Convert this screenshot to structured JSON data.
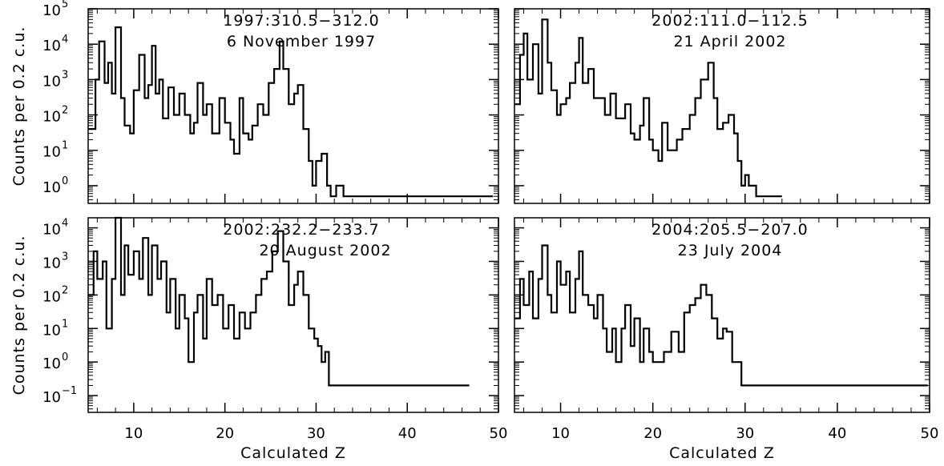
{
  "chart_data": [
    {
      "type": "histogram",
      "title_line1": "1997:310.5−312.0",
      "title_line2": "6 November 1997",
      "xlabel": "",
      "ylabel": "Counts per 0.2 c.u.",
      "xlim": [
        5,
        50
      ],
      "ylim_log10": [
        -0.5,
        5
      ],
      "yticks": [
        "10^0",
        "10^1",
        "10^2",
        "10^3",
        "10^4",
        "10^5"
      ],
      "xticks": [],
      "points": [
        [
          5,
          40
        ],
        [
          5.8,
          1000
        ],
        [
          6.2,
          12000
        ],
        [
          6.8,
          800
        ],
        [
          7.2,
          3000
        ],
        [
          7.6,
          400
        ],
        [
          8,
          30000
        ],
        [
          8.6,
          300
        ],
        [
          9,
          50
        ],
        [
          9.6,
          30
        ],
        [
          10,
          500
        ],
        [
          10.6,
          5000
        ],
        [
          11.2,
          300
        ],
        [
          11.6,
          700
        ],
        [
          12,
          9000
        ],
        [
          12.4,
          400
        ],
        [
          12.8,
          1000
        ],
        [
          13.2,
          80
        ],
        [
          13.8,
          600
        ],
        [
          14.4,
          100
        ],
        [
          15,
          400
        ],
        [
          15.6,
          100
        ],
        [
          16.2,
          30
        ],
        [
          16.6,
          60
        ],
        [
          17,
          800
        ],
        [
          17.6,
          100
        ],
        [
          18,
          200
        ],
        [
          18.6,
          30
        ],
        [
          19,
          30
        ],
        [
          19.4,
          300
        ],
        [
          20,
          60
        ],
        [
          20.6,
          20
        ],
        [
          21,
          8
        ],
        [
          21.6,
          300
        ],
        [
          22,
          30
        ],
        [
          22.6,
          20
        ],
        [
          23,
          50
        ],
        [
          23.6,
          200
        ],
        [
          24.2,
          100
        ],
        [
          24.8,
          800
        ],
        [
          25.4,
          2000
        ],
        [
          26,
          12000
        ],
        [
          26.4,
          2000
        ],
        [
          27,
          200
        ],
        [
          27.6,
          400
        ],
        [
          28,
          700
        ],
        [
          28.6,
          40
        ],
        [
          29.2,
          5
        ],
        [
          29.6,
          1
        ],
        [
          30,
          5
        ],
        [
          30.6,
          8
        ],
        [
          31.2,
          1
        ],
        [
          31.6,
          0.5
        ],
        [
          32.2,
          1
        ],
        [
          33,
          0.5
        ],
        [
          34,
          0.5
        ],
        [
          35.4,
          0.5
        ],
        [
          36,
          0.5
        ],
        [
          36.8,
          0.5
        ],
        [
          40.6,
          0.5
        ],
        [
          41.4,
          0.5
        ],
        [
          48.4,
          0.5
        ],
        [
          49.2,
          0.5
        ]
      ]
    },
    {
      "type": "histogram",
      "title_line1": "2002:111.0−112.5",
      "title_line2": "21 April 2002",
      "xlabel": "",
      "ylabel": "",
      "xlim": [
        5,
        50
      ],
      "ylim_log10": [
        -0.5,
        5
      ],
      "yticks": [],
      "xticks": [],
      "points": [
        [
          5,
          200
        ],
        [
          5.6,
          5000
        ],
        [
          6,
          20000
        ],
        [
          6.4,
          1000
        ],
        [
          7,
          10000
        ],
        [
          7.6,
          400
        ],
        [
          8,
          50000
        ],
        [
          8.6,
          3000
        ],
        [
          9,
          500
        ],
        [
          9.6,
          100
        ],
        [
          10,
          200
        ],
        [
          10.6,
          300
        ],
        [
          11,
          800
        ],
        [
          11.6,
          3000
        ],
        [
          12,
          15000
        ],
        [
          12.4,
          800
        ],
        [
          13,
          2000
        ],
        [
          13.6,
          300
        ],
        [
          14.2,
          300
        ],
        [
          14.8,
          100
        ],
        [
          15.4,
          400
        ],
        [
          16,
          80
        ],
        [
          16.6,
          80
        ],
        [
          17,
          200
        ],
        [
          17.6,
          30
        ],
        [
          18,
          20
        ],
        [
          18.6,
          50
        ],
        [
          19,
          300
        ],
        [
          19.6,
          20
        ],
        [
          20,
          10
        ],
        [
          20.6,
          5
        ],
        [
          21,
          60
        ],
        [
          21.6,
          10
        ],
        [
          22,
          10
        ],
        [
          22.6,
          20
        ],
        [
          23.2,
          40
        ],
        [
          24,
          100
        ],
        [
          24.6,
          300
        ],
        [
          25.2,
          1000
        ],
        [
          26,
          3000
        ],
        [
          26.6,
          300
        ],
        [
          27,
          40
        ],
        [
          27.6,
          60
        ],
        [
          28.2,
          100
        ],
        [
          28.8,
          30
        ],
        [
          29.2,
          5
        ],
        [
          29.6,
          1
        ],
        [
          30,
          2
        ],
        [
          30.4,
          1
        ],
        [
          31.2,
          0.5
        ],
        [
          32.6,
          0.5
        ],
        [
          33.8,
          0.5
        ]
      ]
    },
    {
      "type": "histogram",
      "title_line1": "2002:232.2−233.7",
      "title_line2": "20 August 2002",
      "xlabel": "Calculated Z",
      "ylabel": "Counts per 0.2 c.u.",
      "xlim": [
        5,
        50
      ],
      "ylim_log10": [
        -1.5,
        4.3
      ],
      "yticks": [
        "10^-1",
        "10^0",
        "10^1",
        "10^2",
        "10^3",
        "10^4"
      ],
      "xticks": [
        "10",
        "20",
        "30",
        "40",
        "50"
      ],
      "points": [
        [
          5,
          100
        ],
        [
          5.6,
          2000
        ],
        [
          6,
          300
        ],
        [
          6.6,
          1000
        ],
        [
          7,
          10
        ],
        [
          7.6,
          300
        ],
        [
          8,
          20000
        ],
        [
          8.6,
          100
        ],
        [
          9,
          3000
        ],
        [
          9.4,
          400
        ],
        [
          10,
          2000
        ],
        [
          10.6,
          300
        ],
        [
          11,
          5000
        ],
        [
          11.6,
          100
        ],
        [
          12,
          3000
        ],
        [
          12.6,
          300
        ],
        [
          13,
          1000
        ],
        [
          13.6,
          30
        ],
        [
          14,
          300
        ],
        [
          14.6,
          10
        ],
        [
          15,
          100
        ],
        [
          15.6,
          20
        ],
        [
          16,
          1
        ],
        [
          16.6,
          30
        ],
        [
          17,
          100
        ],
        [
          17.6,
          5
        ],
        [
          18,
          300
        ],
        [
          18.6,
          50
        ],
        [
          19.2,
          100
        ],
        [
          19.8,
          10
        ],
        [
          20.4,
          50
        ],
        [
          21,
          5
        ],
        [
          21.6,
          30
        ],
        [
          22.2,
          10
        ],
        [
          22.8,
          30
        ],
        [
          23.4,
          100
        ],
        [
          24,
          300
        ],
        [
          24.6,
          500
        ],
        [
          25.2,
          2000
        ],
        [
          25.8,
          8000
        ],
        [
          26.4,
          1000
        ],
        [
          27,
          50
        ],
        [
          27.6,
          200
        ],
        [
          28,
          500
        ],
        [
          28.6,
          100
        ],
        [
          29.2,
          10
        ],
        [
          29.8,
          5
        ],
        [
          30.2,
          3
        ],
        [
          30.6,
          1
        ],
        [
          31,
          2
        ],
        [
          31.4,
          0.2
        ],
        [
          32,
          0.2
        ],
        [
          33,
          0.2
        ],
        [
          34.6,
          0.2
        ],
        [
          35.4,
          0.2
        ],
        [
          36,
          0.2
        ],
        [
          37.6,
          0.2
        ],
        [
          38.4,
          0.2
        ],
        [
          39,
          0.2
        ],
        [
          40,
          0.2
        ],
        [
          40.8,
          0.2
        ],
        [
          42,
          0.2
        ],
        [
          43.6,
          0.2
        ],
        [
          45.4,
          0.2
        ],
        [
          46,
          0.2
        ],
        [
          46.6,
          0.2
        ]
      ]
    },
    {
      "type": "histogram",
      "title_line1": "2004:205.5−207.0",
      "title_line2": "23 July 2004",
      "xlabel": "Calculated Z",
      "ylabel": "",
      "xlim": [
        5,
        50
      ],
      "ylim_log10": [
        -1.5,
        4.3
      ],
      "yticks": [],
      "xticks": [
        "10",
        "20",
        "30",
        "40",
        "50"
      ],
      "points": [
        [
          5,
          20
        ],
        [
          5.6,
          300
        ],
        [
          6,
          50
        ],
        [
          6.6,
          500
        ],
        [
          7,
          20
        ],
        [
          7.6,
          300
        ],
        [
          8,
          3000
        ],
        [
          8.6,
          100
        ],
        [
          9,
          30
        ],
        [
          9.6,
          1000
        ],
        [
          10,
          200
        ],
        [
          10.6,
          500
        ],
        [
          11,
          30
        ],
        [
          11.6,
          300
        ],
        [
          12,
          2000
        ],
        [
          12.4,
          100
        ],
        [
          13,
          50
        ],
        [
          13.6,
          20
        ],
        [
          14,
          100
        ],
        [
          14.6,
          10
        ],
        [
          15,
          2
        ],
        [
          15.6,
          10
        ],
        [
          16,
          1
        ],
        [
          16.6,
          10
        ],
        [
          17,
          50
        ],
        [
          17.6,
          3
        ],
        [
          18,
          20
        ],
        [
          18.6,
          1
        ],
        [
          19,
          10
        ],
        [
          19.6,
          2
        ],
        [
          20,
          1
        ],
        [
          20.6,
          1
        ],
        [
          21.2,
          2
        ],
        [
          22,
          8
        ],
        [
          22.8,
          2
        ],
        [
          23.4,
          30
        ],
        [
          24,
          50
        ],
        [
          24.6,
          80
        ],
        [
          25.2,
          200
        ],
        [
          25.8,
          100
        ],
        [
          26.4,
          20
        ],
        [
          27,
          5
        ],
        [
          27.6,
          10
        ],
        [
          28,
          8
        ],
        [
          28.6,
          1
        ],
        [
          29,
          1
        ],
        [
          29.6,
          0.2
        ],
        [
          30.6,
          0.2
        ],
        [
          31.4,
          0.2
        ],
        [
          32,
          0.2
        ],
        [
          33,
          0.2
        ],
        [
          34,
          0.2
        ],
        [
          36.2,
          0.2
        ],
        [
          36.8,
          0.2
        ],
        [
          38,
          0.2
        ],
        [
          39.2,
          0.2
        ],
        [
          40,
          0.2
        ],
        [
          41.6,
          0.2
        ],
        [
          42.4,
          0.2
        ],
        [
          43.6,
          0.2
        ],
        [
          44.8,
          0.2
        ],
        [
          49.6,
          0.2
        ]
      ]
    }
  ]
}
